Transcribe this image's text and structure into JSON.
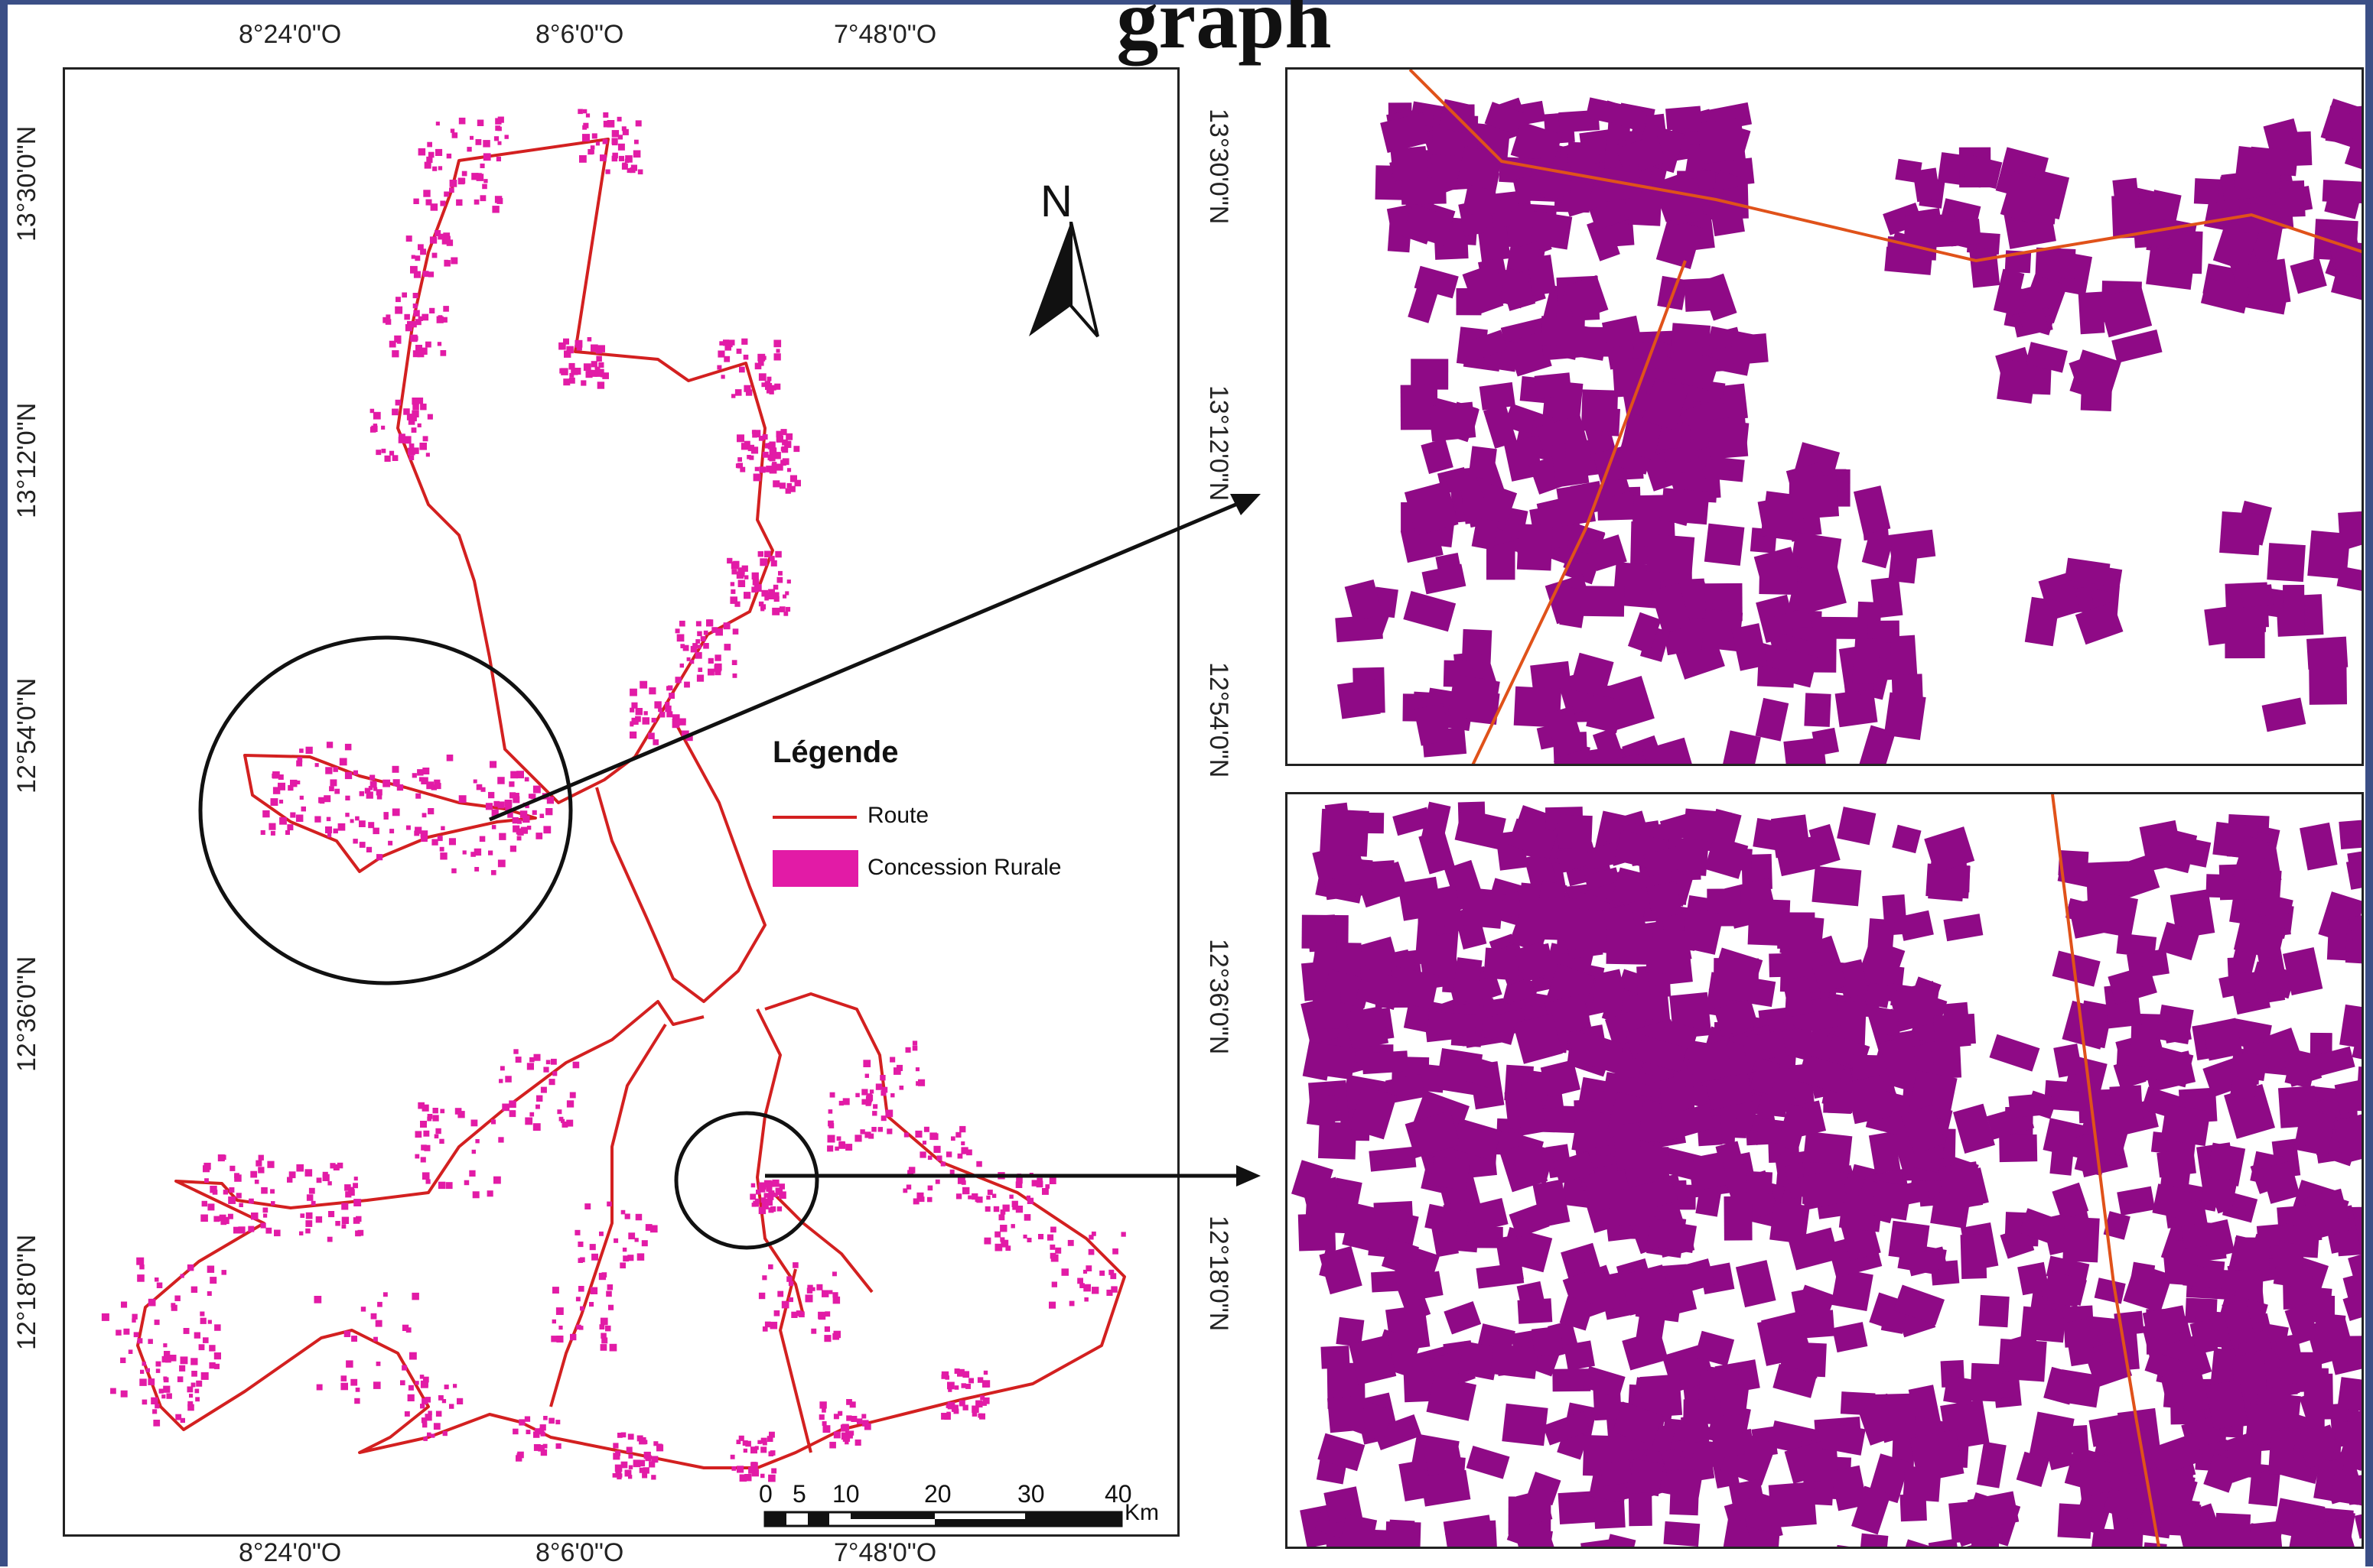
{
  "title": "graph",
  "coords": {
    "top": [
      "8°24'0\"O",
      "8°6'0\"O",
      "7°48'0\"O"
    ],
    "bottom": [
      "8°24'0\"O",
      "8°6'0\"O",
      "7°48'0\"O"
    ],
    "left": [
      "13°30'0\"N",
      "13°12'0\"N",
      "12°54'0\"N",
      "12°36'0\"N",
      "12°18'0\"N"
    ],
    "right": [
      "13°30'0\"N",
      "13°12'0\"N",
      "12°54'0\"N",
      "12°36'0\"N",
      "12°18'0\"N"
    ]
  },
  "north_label": "N",
  "legend": {
    "title": "Légende",
    "items": [
      {
        "label": "Route",
        "color": "#d32020",
        "kind": "line"
      },
      {
        "label": "Concession Rurale",
        "color": "#e21ba6",
        "kind": "fill"
      }
    ]
  },
  "scale": {
    "ticks": [
      "0",
      "5",
      "10",
      "20",
      "30",
      "40"
    ],
    "unit": "Km"
  },
  "colors": {
    "route": "#d32020",
    "concession": "#e21ba6",
    "inset_building": "#8f0a86",
    "inset_route": "#e0521a",
    "frame": "#3b4f86"
  }
}
